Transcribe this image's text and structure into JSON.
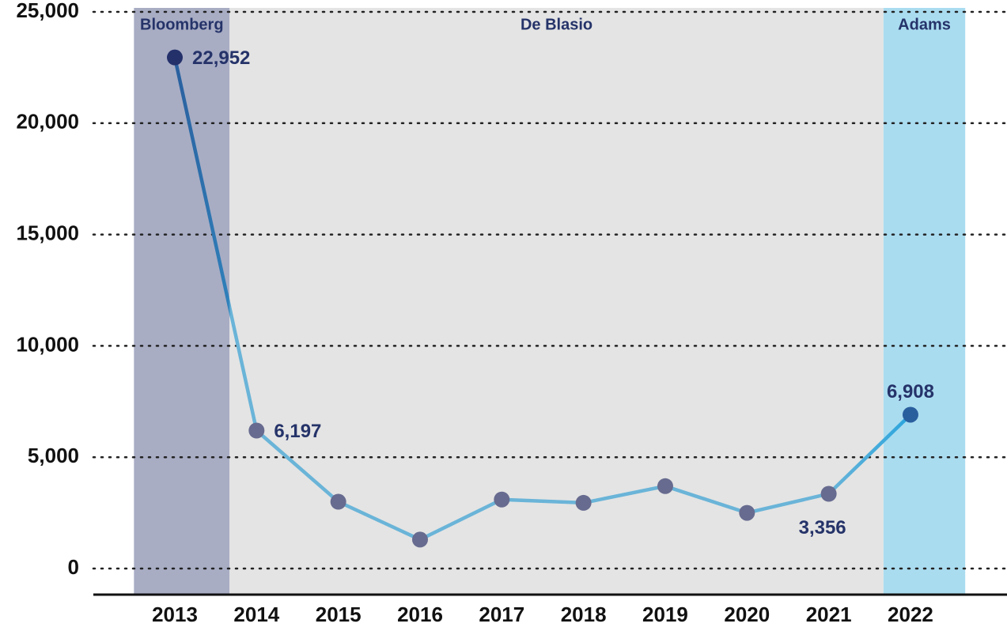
{
  "chart_data": {
    "type": "line",
    "categories": [
      "2013",
      "2014",
      "2015",
      "2016",
      "2017",
      "2018",
      "2019",
      "2020",
      "2021",
      "2022"
    ],
    "series": [
      {
        "color": "#6ab4d8",
        "values": [
          22952,
          6197,
          3000,
          1300,
          3100,
          2950,
          3700,
          2500,
          3356,
          6908
        ],
        "value_labels": [
          "22,952",
          "6,197",
          null,
          null,
          null,
          null,
          null,
          null,
          "3,356",
          "6,908"
        ],
        "point_colors": [
          "#24306a",
          "#676b8f",
          "#676b8f",
          "#676b8f",
          "#676b8f",
          "#676b8f",
          "#676b8f",
          "#676b8f",
          "#676b8f",
          "#2a5f9e"
        ]
      }
    ],
    "regions": [
      {
        "label": "Bloomberg",
        "color": "#a8adc4"
      },
      {
        "label": "De Blasio",
        "color": "#e4e4e4"
      },
      {
        "label": "Adams",
        "color": "#aadcf0"
      }
    ],
    "ylim": [
      0,
      25000
    ],
    "yticks": [
      0,
      {
        "value": 5000,
        "label": "5,000"
      },
      {
        "value": 10000,
        "label": "10,000"
      },
      {
        "value": 15000,
        "label": "15,000"
      },
      {
        "value": 20000,
        "label": "20,000"
      },
      {
        "value": 25000,
        "label": "25,000"
      }
    ],
    "grid": true
  }
}
